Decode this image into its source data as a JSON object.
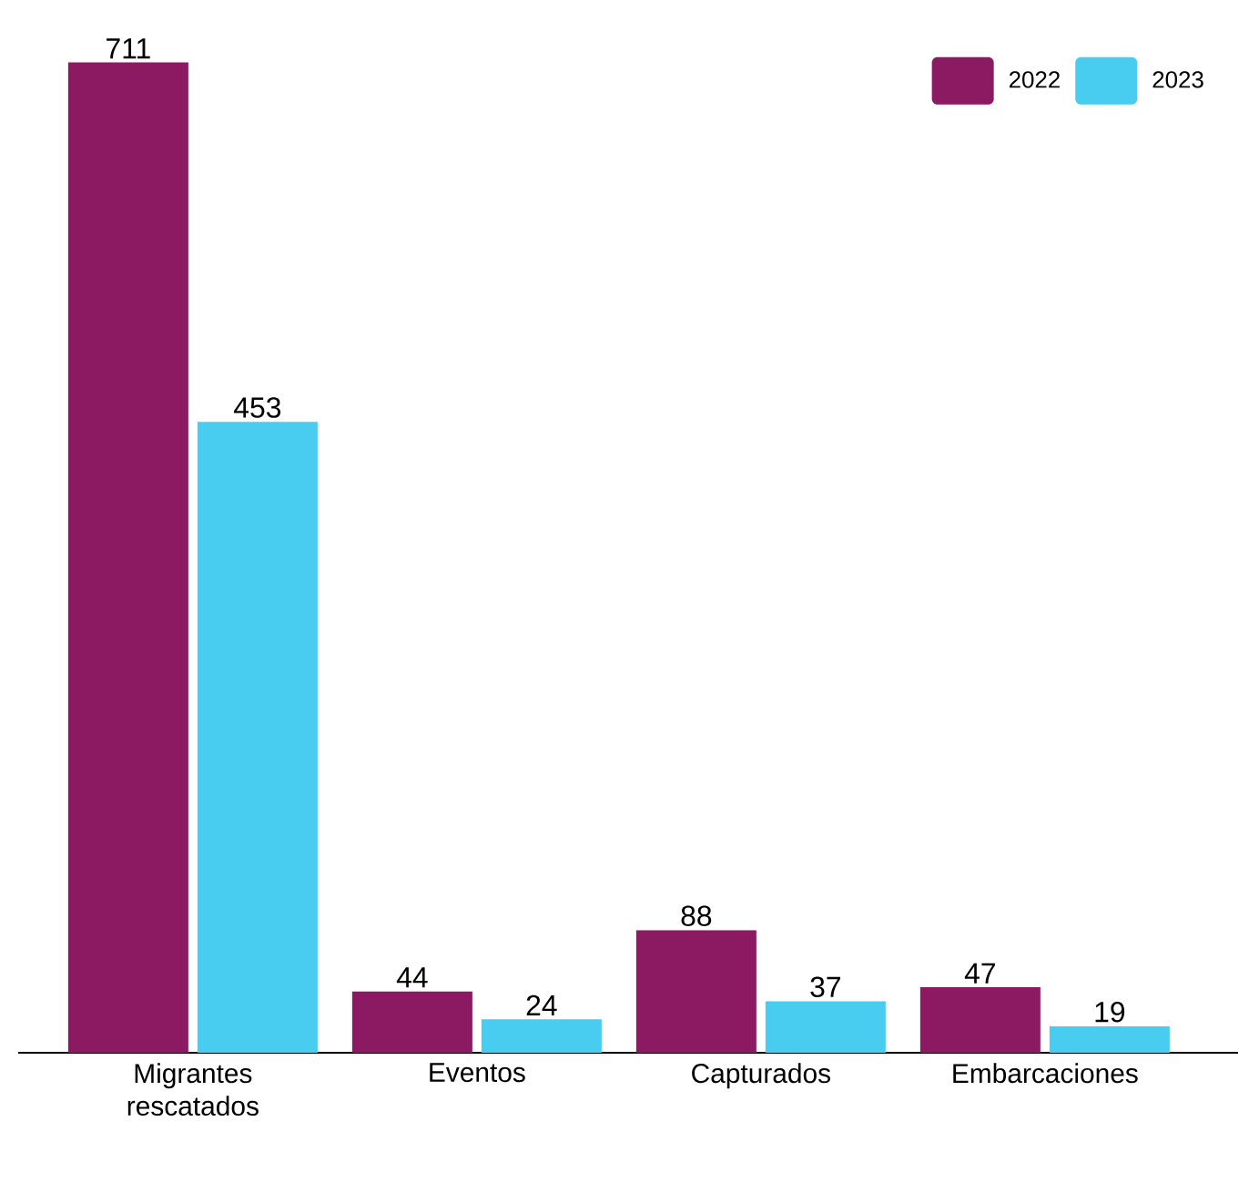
{
  "chart_data": {
    "type": "bar",
    "categories": [
      "Migrantes rescatados",
      "Eventos",
      "Capturados",
      "Embarcaciones"
    ],
    "series": [
      {
        "name": "2022",
        "color": "#8b1a63",
        "values": [
          711,
          44,
          88,
          47
        ]
      },
      {
        "name": "2023",
        "color": "#48cdf0",
        "values": [
          453,
          24,
          37,
          19
        ]
      }
    ],
    "data_labels": true,
    "legend": "top right",
    "tick_labels": "x"
  }
}
